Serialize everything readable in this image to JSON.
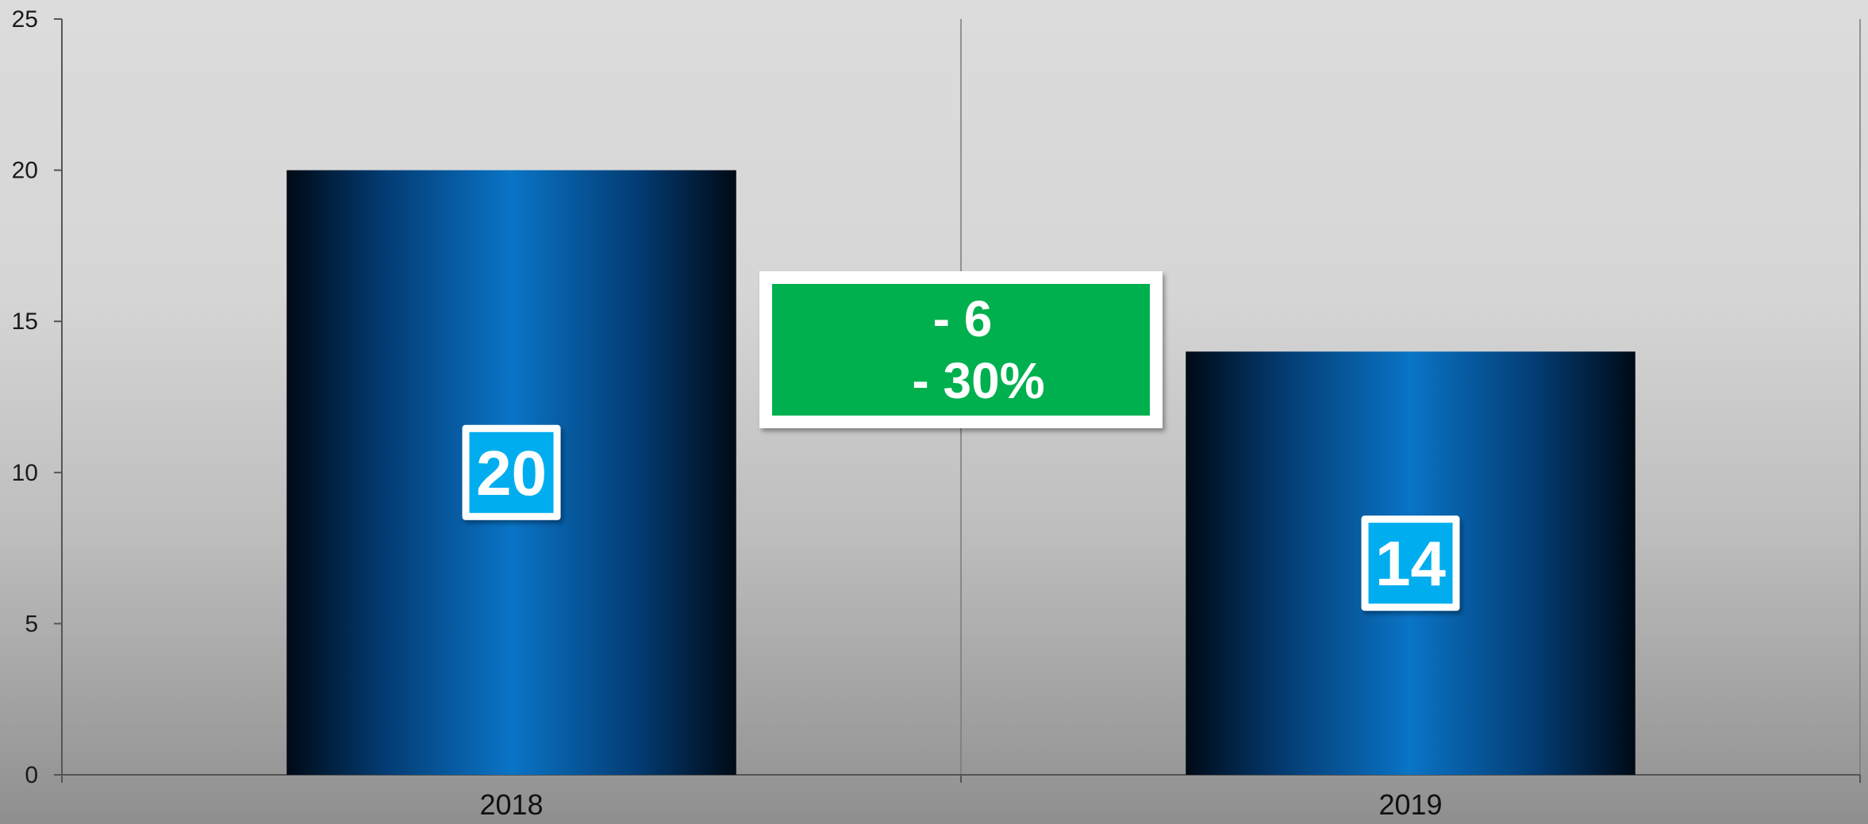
{
  "chart_data": {
    "type": "bar",
    "categories": [
      "2018",
      "2019"
    ],
    "values": [
      20,
      14
    ],
    "title": "",
    "xlabel": "",
    "ylabel": "",
    "ylim": [
      0,
      25
    ],
    "yticks": [
      "0",
      "5",
      "10",
      "15",
      "20",
      "25"
    ],
    "data_labels": [
      "20",
      "14"
    ],
    "grid": "vertical category separators",
    "annotation": {
      "line1": "- 6",
      "line2": "- 30%"
    },
    "colors": {
      "bar_center": "#0a74c6",
      "bar_edge": "#000a16",
      "label_box": "#00aeef",
      "annotation_box": "#00b050"
    }
  }
}
